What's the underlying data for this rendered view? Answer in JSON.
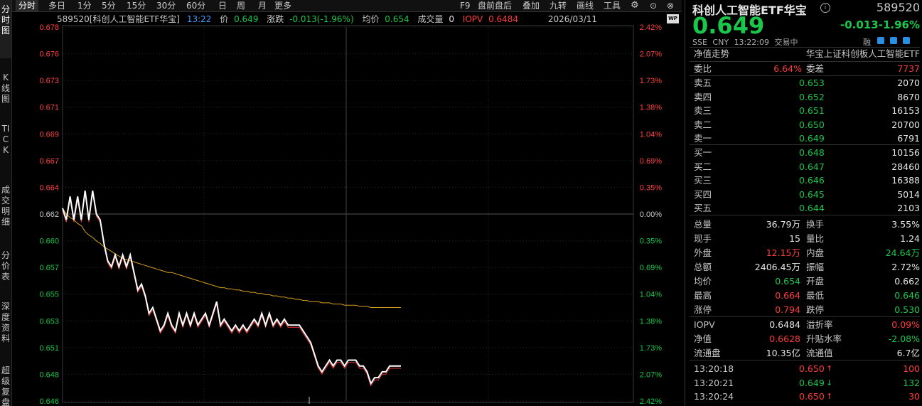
{
  "leftnav": [
    {
      "label": "分时图",
      "active": true
    },
    {
      "label": "K线图",
      "active": false
    },
    {
      "label": "TICK",
      "active": false
    },
    {
      "label": "成交明细",
      "active": false
    },
    {
      "label": "分价表",
      "active": false
    },
    {
      "label": "深度资料",
      "active": false
    },
    {
      "label": "超级复盘",
      "active": false
    }
  ],
  "toolbar": {
    "periods": [
      "分时",
      "多日",
      "1分",
      "5分",
      "15分",
      "30分",
      "60分",
      "日",
      "周",
      "月",
      "更多"
    ],
    "right_items": [
      "F9",
      "盘前盘后",
      "叠加",
      "九转",
      "画线",
      "工具"
    ],
    "gear_icon": "gear-icon",
    "help_icon": "help-icon",
    "close_icon": "close-icon"
  },
  "infobar": {
    "code_name": "589520[科创人工智能ETF华宝]",
    "time": "13:22",
    "price_label": "价",
    "price": "0.649",
    "change_label": "涨跌",
    "change": "-0.013(-1.96%)",
    "avg_label": "均价",
    "avg": "0.654",
    "volume_label": "成交量",
    "volume": "0",
    "iopv_label": "IOPV",
    "iopv": "0.6484",
    "date": "2026/03/11"
  },
  "chart_data": {
    "type": "line",
    "prev_close": 0.662,
    "ylim": [
      0.646,
      0.678
    ],
    "y_ticks": [
      "0.678",
      "0.676",
      "0.673",
      "0.671",
      "0.669",
      "0.667",
      "0.664",
      "0.662",
      "0.660",
      "0.657",
      "0.655",
      "0.653",
      "0.651",
      "0.648",
      "0.646"
    ],
    "pct_ticks": [
      "2.42%",
      "2.07%",
      "1.73%",
      "1.38%",
      "1.04%",
      "0.69%",
      "0.35%",
      "0.00%",
      "0.35%",
      "0.69%",
      "1.04%",
      "1.38%",
      "1.73%",
      "2.07%",
      "2.42%"
    ],
    "series": [
      {
        "name": "价",
        "color": "#ffffff",
        "values": [
          0.6625,
          0.6615,
          0.6635,
          0.6615,
          0.6635,
          0.6615,
          0.664,
          0.6615,
          0.664,
          0.662,
          0.6615,
          0.6595,
          0.658,
          0.6575,
          0.6585,
          0.6575,
          0.6585,
          0.6575,
          0.6585,
          0.657,
          0.6555,
          0.656,
          0.655,
          0.6535,
          0.654,
          0.653,
          0.652,
          0.6525,
          0.6535,
          0.6525,
          0.652,
          0.6535,
          0.6525,
          0.6535,
          0.6525,
          0.6535,
          0.6525,
          0.653,
          0.6535,
          0.6525,
          0.6535,
          0.6545,
          0.6525,
          0.653,
          0.6525,
          0.652,
          0.6525,
          0.652,
          0.6525,
          0.652,
          0.6525,
          0.653,
          0.6525,
          0.6535,
          0.6525,
          0.6535,
          0.6525,
          0.653,
          0.6525,
          0.653,
          0.6525,
          0.6525,
          0.6525,
          0.6525,
          0.652,
          0.6515,
          0.651,
          0.65,
          0.649,
          0.6485,
          0.649,
          0.6495,
          0.649,
          0.6495,
          0.6495,
          0.649,
          0.6495,
          0.6495,
          0.6495,
          0.649,
          0.649,
          0.6485,
          0.6475,
          0.648,
          0.648,
          0.6485,
          0.6485,
          0.649,
          0.649,
          0.649,
          0.649
        ],
        "source_note": "approx"
      },
      {
        "name": "均价",
        "color": "#d6a11c",
        "values": [
          0.6625,
          0.662,
          0.6617,
          0.6615,
          0.6612,
          0.661,
          0.6605,
          0.6602,
          0.66,
          0.6597,
          0.6595,
          0.6592,
          0.659,
          0.6588,
          0.6586,
          0.6584,
          0.6582,
          0.6581,
          0.658,
          0.6579,
          0.6578,
          0.6577,
          0.6576,
          0.6575,
          0.6574,
          0.6573,
          0.6572,
          0.6571,
          0.657,
          0.657,
          0.6569,
          0.6568,
          0.6567,
          0.6566,
          0.6565,
          0.6564,
          0.6563,
          0.6562,
          0.6561,
          0.656,
          0.6559,
          0.6558,
          0.6557,
          0.6557,
          0.6556,
          0.6556,
          0.6555,
          0.6555,
          0.6554,
          0.6554,
          0.6553,
          0.6553,
          0.6552,
          0.6552,
          0.6551,
          0.6551,
          0.655,
          0.655,
          0.6549,
          0.6549,
          0.6548,
          0.6548,
          0.6547,
          0.6547,
          0.6546,
          0.6546,
          0.6545,
          0.6545,
          0.6545,
          0.6544,
          0.6544,
          0.6544,
          0.6543,
          0.6543,
          0.6543,
          0.6542,
          0.6542,
          0.6542,
          0.6542,
          0.6541,
          0.6541,
          0.6541,
          0.654,
          0.654,
          0.654,
          0.654,
          0.654,
          0.654,
          0.654,
          0.654,
          0.654
        ]
      }
    ],
    "grid": true
  },
  "panel": {
    "title": "科创人工智能ETF华宝",
    "code": "589520",
    "price": "0.649",
    "change": "-0.013",
    "change_pct": "-1.96%",
    "exchange": "SSE",
    "currency": "CNY",
    "time": "13:22:09",
    "status": "交易中",
    "rong": "融",
    "nav_trend": "净值走势",
    "index_name": "华宝上证科创板人工智能ETF",
    "weibi_label": "委比",
    "weibi": "6.64%",
    "weicha_label": "委差",
    "weicha": "7737",
    "asks": [
      {
        "label": "卖五",
        "price": "0.653",
        "vol": "2070"
      },
      {
        "label": "卖四",
        "price": "0.652",
        "vol": "8670"
      },
      {
        "label": "卖三",
        "price": "0.651",
        "vol": "16153"
      },
      {
        "label": "卖二",
        "price": "0.650",
        "vol": "20700"
      },
      {
        "label": "卖一",
        "price": "0.649",
        "vol": "6791"
      }
    ],
    "bids": [
      {
        "label": "买一",
        "price": "0.648",
        "vol": "10156"
      },
      {
        "label": "买二",
        "price": "0.647",
        "vol": "28460"
      },
      {
        "label": "买三",
        "price": "0.646",
        "vol": "16388"
      },
      {
        "label": "买四",
        "price": "0.645",
        "vol": "5014"
      },
      {
        "label": "买五",
        "price": "0.644",
        "vol": "2103"
      }
    ],
    "stats": [
      {
        "l1": "总量",
        "v1": "36.79万",
        "c1": "white",
        "l2": "换手",
        "v2": "3.55%",
        "c2": "white"
      },
      {
        "l1": "现手",
        "v1": "15",
        "c1": "white",
        "l2": "量比",
        "v2": "1.24",
        "c2": "white"
      },
      {
        "l1": "外盘",
        "v1": "12.15万",
        "c1": "red",
        "l2": "内盘",
        "v2": "24.64万",
        "c2": "green"
      },
      {
        "l1": "总额",
        "v1": "2406.45万",
        "c1": "white",
        "l2": "振幅",
        "v2": "2.72%",
        "c2": "white"
      },
      {
        "l1": "均价",
        "v1": "0.654",
        "c1": "green",
        "l2": "开盘",
        "v2": "0.662",
        "c2": "white"
      },
      {
        "l1": "最高",
        "v1": "0.664",
        "c1": "red",
        "l2": "最低",
        "v2": "0.646",
        "c2": "green"
      },
      {
        "l1": "涨停",
        "v1": "0.794",
        "c1": "red",
        "l2": "跌停",
        "v2": "0.530",
        "c2": "green"
      }
    ],
    "stats2": [
      {
        "l1": "IOPV",
        "v1": "0.6484",
        "c1": "white",
        "l2": "溢折率",
        "v2": "0.09%",
        "c2": "red"
      },
      {
        "l1": "净值",
        "v1": "0.6628",
        "c1": "red",
        "l2": "升贴水率",
        "v2": "-2.08%",
        "c2": "green"
      },
      {
        "l1": "流通盘",
        "v1": "10.35亿",
        "c1": "white",
        "l2": "流通值",
        "v2": "6.7亿",
        "c2": "white"
      }
    ],
    "ticks": [
      {
        "time": "13:20:18",
        "price": "0.650",
        "dir": "up",
        "vol": "100",
        "vc": "red"
      },
      {
        "time": "13:20:21",
        "price": "0.649",
        "dir": "down",
        "vol": "132",
        "vc": "green"
      },
      {
        "time": "13:20:24",
        "price": "0.650",
        "dir": "up",
        "vol": "30",
        "vc": "red"
      }
    ],
    "wp_badge": "WP"
  }
}
